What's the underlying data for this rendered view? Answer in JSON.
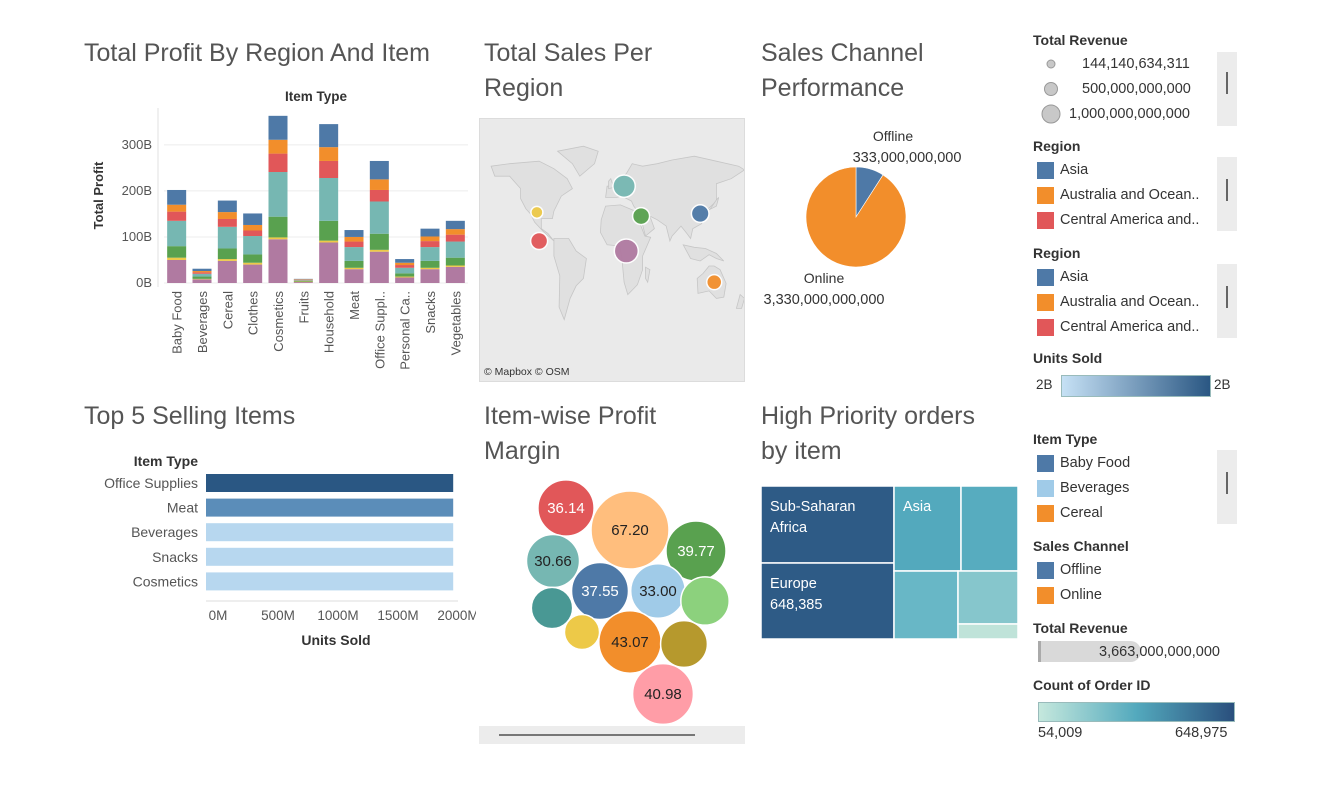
{
  "titles": {
    "profit": "Total Profit By Region And Item",
    "sales_region_1": "Total Sales Per",
    "sales_region_2": "Region",
    "channel_1": "Sales Channel",
    "channel_2": "Performance",
    "top5": "Top 5 Selling Items",
    "margin_1": "Item-wise Profit",
    "margin_2": "Margin",
    "priority_1": "High Priority orders",
    "priority_2": "by item"
  },
  "map": {
    "credit": "© Mapbox © OSM"
  },
  "colors": {
    "blue": "#4e79a7",
    "orange": "#f28e2b",
    "red": "#e15759",
    "teal": "#76b7b2",
    "green": "#59a14f",
    "yellow": "#edc948",
    "purple": "#b07aa1",
    "pink": "#ff9da7",
    "lightblue": "#a0cbe8",
    "lightorange": "#ffbe7d",
    "darkteal": "#499894",
    "olive": "#b6992d",
    "lightgreen": "#8cd17d"
  },
  "chart_data": [
    {
      "id": "profit",
      "type": "bar",
      "stacked": true,
      "title": "Total Profit By Region And Item",
      "header": "Item Type",
      "ylabel": "Total Profit",
      "yticks": [
        "0B",
        "100B",
        "200B",
        "300B"
      ],
      "ylim": [
        0,
        380
      ],
      "categories": [
        "Baby Food",
        "Beverages",
        "Cereal",
        "Clothes",
        "Cosmetics",
        "Fruits",
        "Household",
        "Meat",
        "Office Suppl..",
        "Personal Ca..",
        "Snacks",
        "Vegetables"
      ],
      "series": [
        {
          "color": "#b07aa1",
          "values": [
            50,
            8,
            48,
            40,
            95,
            2,
            88,
            30,
            68,
            12,
            30,
            35
          ]
        },
        {
          "color": "#edc948",
          "values": [
            5,
            1,
            4,
            4,
            4,
            1,
            4,
            3,
            4,
            2,
            3,
            3
          ]
        },
        {
          "color": "#59a14f",
          "values": [
            25,
            5,
            23,
            18,
            45,
            2,
            43,
            15,
            35,
            7,
            15,
            17
          ]
        },
        {
          "color": "#76b7b2",
          "values": [
            55,
            6,
            47,
            40,
            97,
            1,
            93,
            30,
            70,
            12,
            30,
            35
          ]
        },
        {
          "color": "#e15759",
          "values": [
            20,
            3,
            17,
            12,
            40,
            1,
            37,
            12,
            25,
            6,
            13,
            15
          ]
        },
        {
          "color": "#f28e2b",
          "values": [
            15,
            3,
            15,
            12,
            30,
            1,
            30,
            10,
            23,
            5,
            10,
            12
          ]
        },
        {
          "color": "#4e79a7",
          "values": [
            32,
            5,
            25,
            25,
            52,
            1,
            50,
            15,
            40,
            8,
            17,
            18
          ]
        }
      ]
    },
    {
      "id": "sales_map",
      "type": "scatter",
      "title": "Total Sales Per Region",
      "points": [
        {
          "lon": 15,
          "lat": 52,
          "color": "#76b7b2",
          "size": 0.82
        },
        {
          "lon": 118,
          "lat": 30,
          "color": "#4e79a7",
          "size": 0.58
        },
        {
          "lon": 38,
          "lat": 28,
          "color": "#59a14f",
          "size": 0.55
        },
        {
          "lon": 18,
          "lat": 0,
          "color": "#b07aa1",
          "size": 0.9
        },
        {
          "lon": -100,
          "lat": 8,
          "color": "#e15759",
          "size": 0.55
        },
        {
          "lon": -103,
          "lat": 31,
          "color": "#edc948",
          "size": 0.3
        },
        {
          "lon": 137,
          "lat": -25,
          "color": "#f28e2b",
          "size": 0.45
        }
      ]
    },
    {
      "id": "channel",
      "type": "pie",
      "title": "Sales Channel Performance",
      "slices": [
        {
          "label": "Offline",
          "value": 333000000000,
          "value_label": "333,000,000,000",
          "color": "#4e79a7"
        },
        {
          "label": "Online",
          "value": 3330000000000,
          "value_label": "3,330,000,000,000",
          "color": "#f28e2b"
        }
      ]
    },
    {
      "id": "top5",
      "type": "bar",
      "orientation": "horizontal",
      "title": "Top 5 Selling Items",
      "header": "Item Type",
      "xlabel": "Units Sold",
      "xticks": [
        "0M",
        "500M",
        "1000M",
        "1500M",
        "2000M"
      ],
      "xlim": [
        0,
        2100
      ],
      "categories": [
        "Office Supplies",
        "Meat",
        "Beverages",
        "Snacks",
        "Cosmetics"
      ],
      "values": [
        2060,
        2060,
        2060,
        2060,
        2060
      ],
      "colors": [
        "#2a5783",
        "#5b8db9",
        "#b7d7ef",
        "#b7d7ef",
        "#b7d7ef"
      ]
    },
    {
      "id": "margin",
      "type": "scatter",
      "title": "Item-wise Profit Margin",
      "bubbles": [
        {
          "label": "36.14",
          "color": "#e15759",
          "size": 0.72
        },
        {
          "label": "67.20",
          "color": "#ffbe7d",
          "size": 1.0
        },
        {
          "label": "39.77",
          "color": "#59a14f",
          "size": 0.77
        },
        {
          "label": "30.66",
          "color": "#76b7b2",
          "size": 0.68
        },
        {
          "label": "37.55",
          "color": "#4e79a7",
          "size": 0.73
        },
        {
          "label": "33.00",
          "color": "#a0cbe8",
          "size": 0.7
        },
        {
          "label": "",
          "color": "#8cd17d",
          "size": 0.62
        },
        {
          "label": "",
          "color": "#499894",
          "size": 0.53
        },
        {
          "label": "",
          "color": "#edc948",
          "size": 0.45
        },
        {
          "label": "43.07",
          "color": "#f28e2b",
          "size": 0.8
        },
        {
          "label": "",
          "color": "#b6992d",
          "size": 0.6
        },
        {
          "label": "40.98",
          "color": "#ff9da7",
          "size": 0.78
        }
      ]
    },
    {
      "id": "priority",
      "type": "heatmap",
      "title": "High Priority orders by item",
      "cells": [
        {
          "region": "Sub-Saharan Africa",
          "count": 648975,
          "color": "#2e5b86",
          "show": "Sub-Saharan\nAfrica"
        },
        {
          "region": "Europe",
          "count": 648385,
          "value_label": "648,385",
          "color": "#2e5b86",
          "show": "Europe\n648,385"
        },
        {
          "region": "Asia",
          "count": 320000,
          "color": "#53a9bd",
          "show": "Asia"
        },
        {
          "region": "",
          "count": 310000,
          "color": "#57acbf",
          "show": ""
        },
        {
          "region": "",
          "count": 250000,
          "color": "#68b7c6",
          "show": ""
        },
        {
          "region": "",
          "count": 180000,
          "color": "#86c6cc",
          "show": ""
        },
        {
          "region": "",
          "count": 54009,
          "color": "#bfe3d9",
          "show": ""
        }
      ]
    }
  ],
  "legends": {
    "total_revenue": {
      "title": "Total Revenue",
      "items": [
        "144,140,634,311",
        "500,000,000,000",
        "1,000,000,000,000"
      ]
    },
    "region_a": {
      "title": "Region",
      "items": [
        {
          "label": "Asia",
          "color": "#4e79a7"
        },
        {
          "label": "Australia and Ocean..",
          "color": "#f28e2b"
        },
        {
          "label": "Central America and..",
          "color": "#e15759"
        }
      ]
    },
    "region_b": {
      "title": "Region",
      "items": [
        {
          "label": "Asia",
          "color": "#4e79a7"
        },
        {
          "label": "Australia and Ocean..",
          "color": "#f28e2b"
        },
        {
          "label": "Central America and..",
          "color": "#e15759"
        }
      ]
    },
    "units_sold": {
      "title": "Units Sold",
      "min": "2B",
      "max": "2B"
    },
    "item_type": {
      "title": "Item Type",
      "items": [
        {
          "label": "Baby Food",
          "color": "#4e79a7"
        },
        {
          "label": "Beverages",
          "color": "#a0cbe8"
        },
        {
          "label": "Cereal",
          "color": "#f28e2b"
        }
      ]
    },
    "sales_channel": {
      "title": "Sales Channel",
      "items": [
        {
          "label": "Offline",
          "color": "#4e79a7"
        },
        {
          "label": "Online",
          "color": "#f28e2b"
        }
      ]
    },
    "total_revenue_2": {
      "title": "Total Revenue",
      "value": "3,663,000,000,000"
    },
    "count_order": {
      "title": "Count of Order ID",
      "min": "54,009",
      "max": "648,975"
    }
  }
}
